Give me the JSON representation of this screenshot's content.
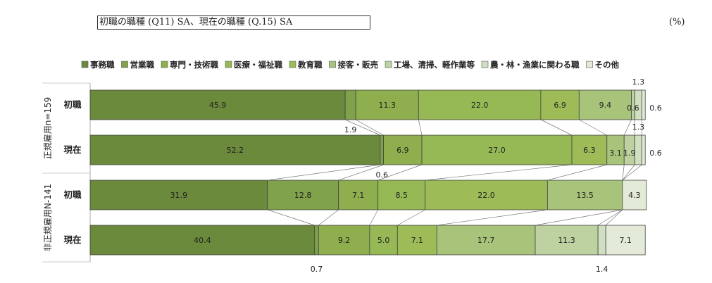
{
  "chart_data": {
    "type": "bar",
    "orientation": "horizontal",
    "stacked": true,
    "percent_stacked": true,
    "title": "初職の職種 (Q11) SA、現在の職種 (Q.15) SA",
    "unit_label": "(%)",
    "legend_position": "top",
    "series": [
      {
        "name": "事務職",
        "color": "#6b8a3b"
      },
      {
        "name": "営業職",
        "color": "#80a24a"
      },
      {
        "name": "専門・技術職",
        "color": "#8faf4e"
      },
      {
        "name": "医療・福祉職",
        "color": "#97b955"
      },
      {
        "name": "教育職",
        "color": "#9dbc58"
      },
      {
        "name": "接客・販売",
        "color": "#a8c47a"
      },
      {
        "name": "工場、清掃、軽作業等",
        "color": "#bdd2a0"
      },
      {
        "name": "農・林・漁業に関わる職",
        "color": "#d0dfbf"
      },
      {
        "name": "その他",
        "color": "#e3ebd8"
      }
    ],
    "groups": [
      {
        "label": "正規雇用n=159",
        "rows": [
          {
            "label": "初職",
            "values": [
              45.9,
              1.9,
              11.3,
              22.0,
              6.9,
              9.4,
              0.6,
              1.3,
              0.6
            ]
          },
          {
            "label": "現在",
            "values": [
              52.2,
              0.6,
              6.9,
              27.0,
              6.3,
              3.1,
              1.9,
              1.3,
              0.6
            ]
          }
        ]
      },
      {
        "label": "非正規雇用N-141",
        "rows": [
          {
            "label": "初職",
            "values": [
              31.9,
              12.8,
              7.1,
              8.5,
              22.0,
              13.5,
              0.0,
              0.0,
              4.3
            ]
          },
          {
            "label": "現在",
            "values": [
              40.4,
              0.7,
              9.2,
              5.0,
              7.1,
              17.7,
              11.3,
              1.4,
              7.1
            ]
          }
        ]
      }
    ],
    "row_value_labels": [
      [
        "45.9",
        "1.9",
        "11.3",
        "22.0",
        "6.9",
        "9.4",
        "0.6",
        "1.3",
        "0.6"
      ],
      [
        "52.2",
        "0.6",
        "6.9",
        "27.0",
        "6.3",
        "3.1",
        "1.9",
        "1.3",
        "0.6"
      ],
      [
        "31.9",
        "12.8",
        "7.1",
        "8.5",
        "22.0",
        "13.5",
        "",
        "",
        "4.3"
      ],
      [
        "40.4",
        "0.7",
        "9.2",
        "5.0",
        "7.1",
        "17.7",
        "11.3",
        "1.4",
        "7.1"
      ]
    ],
    "xlim": [
      0,
      100
    ],
    "connector_lines": true
  }
}
